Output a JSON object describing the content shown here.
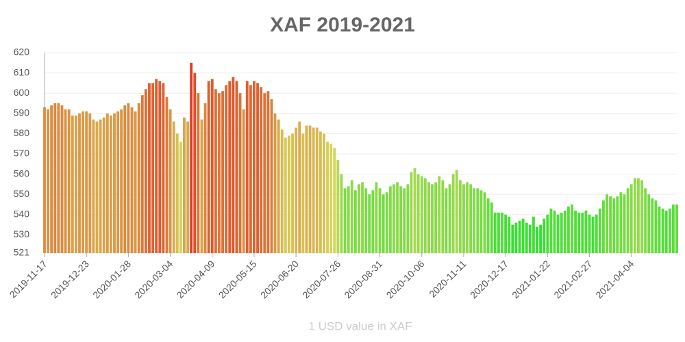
{
  "chart_data": {
    "type": "bar",
    "title": "XAF 2019-2021",
    "x_label": "1 USD value in XAF",
    "categories": [
      "2019-11-17",
      null,
      null,
      null,
      null,
      null,
      null,
      null,
      null,
      null,
      null,
      null,
      "2019-12-23",
      null,
      null,
      null,
      null,
      null,
      null,
      null,
      null,
      null,
      null,
      null,
      "2020-01-28",
      null,
      null,
      null,
      null,
      null,
      null,
      null,
      null,
      null,
      null,
      null,
      "2020-03-04",
      null,
      null,
      null,
      null,
      null,
      null,
      null,
      null,
      null,
      null,
      null,
      "2020-04-09",
      null,
      null,
      null,
      null,
      null,
      null,
      null,
      null,
      null,
      null,
      null,
      "2020-05-15",
      null,
      null,
      null,
      null,
      null,
      null,
      null,
      null,
      null,
      null,
      null,
      "2020-06-20",
      null,
      null,
      null,
      null,
      null,
      null,
      null,
      null,
      null,
      null,
      null,
      "2020-07-26",
      null,
      null,
      null,
      null,
      null,
      null,
      null,
      null,
      null,
      null,
      null,
      "2020-08-31",
      null,
      null,
      null,
      null,
      null,
      null,
      null,
      null,
      null,
      null,
      null,
      "2020-10-06",
      null,
      null,
      null,
      null,
      null,
      null,
      null,
      null,
      null,
      null,
      null,
      "2020-11-11",
      null,
      null,
      null,
      null,
      null,
      null,
      null,
      null,
      null,
      null,
      null,
      "2020-12-17",
      null,
      null,
      null,
      null,
      null,
      null,
      null,
      null,
      null,
      null,
      null,
      "2021-01-22",
      null,
      null,
      null,
      null,
      null,
      null,
      null,
      null,
      null,
      null,
      null,
      "2021-02-27",
      null,
      null,
      null,
      null,
      null,
      null,
      null,
      null,
      null,
      null,
      null,
      "2021-04-04",
      null,
      null,
      null,
      null,
      null,
      null,
      null,
      null,
      null,
      null,
      null,
      null,
      null
    ],
    "values": [
      593,
      592,
      594,
      595,
      595,
      594,
      592,
      592,
      589,
      589,
      590,
      591,
      591,
      590,
      587,
      586,
      587,
      588,
      590,
      589,
      590,
      591,
      592,
      594,
      595,
      593,
      591,
      595,
      599,
      602,
      605,
      605,
      607,
      606,
      605,
      598,
      592,
      586,
      580,
      576,
      588,
      586,
      615,
      610,
      600,
      587,
      595,
      606,
      607,
      602,
      600,
      601,
      604,
      606,
      608,
      606,
      600,
      592,
      606,
      604,
      606,
      605,
      603,
      600,
      601,
      597,
      590,
      587,
      582,
      578,
      579,
      580,
      583,
      586,
      580,
      584,
      584,
      583,
      583,
      581,
      580,
      576,
      575,
      573,
      567,
      560,
      553,
      554,
      557,
      552,
      555,
      556,
      553,
      550,
      552,
      556,
      553,
      550,
      551,
      554,
      555,
      556,
      554,
      553,
      555,
      561,
      563,
      560,
      559,
      558,
      556,
      555,
      556,
      559,
      557,
      553,
      555,
      560,
      562,
      557,
      555,
      556,
      555,
      553,
      553,
      552,
      551,
      548,
      546,
      541,
      541,
      541,
      540,
      539,
      535,
      536,
      537,
      538,
      536,
      535,
      539,
      534,
      535,
      538,
      540,
      543,
      542,
      540,
      541,
      542,
      544,
      545,
      542,
      541,
      541,
      542,
      540,
      539,
      540,
      543,
      547,
      550,
      549,
      548,
      549,
      551,
      550,
      553,
      555,
      558,
      558,
      557,
      553,
      550,
      548,
      547,
      544,
      543,
      542,
      543,
      545,
      545
    ],
    "color_scale": [
      "#2fe02f",
      "#d6d65c",
      "#e03c22"
    ],
    "ylim": [
      521,
      620
    ],
    "yticks": [
      521,
      530,
      540,
      550,
      560,
      570,
      580,
      590,
      600,
      610,
      620
    ],
    "grid": true
  }
}
